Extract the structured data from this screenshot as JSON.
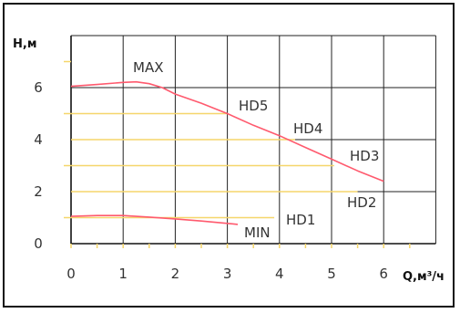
{
  "chart_data": {
    "type": "line",
    "title": "",
    "xlabel": "Q,м³/ч",
    "ylabel": "H,м",
    "xlim": [
      0,
      7
    ],
    "ylim": [
      0,
      8
    ],
    "grid": true,
    "x_ticks": [
      0,
      1,
      2,
      3,
      4,
      5,
      6
    ],
    "y_ticks": [
      0,
      2,
      4,
      6
    ],
    "colors": {
      "curve": "#ff5a6e",
      "speed_line": "#f5d66b",
      "grid": "#222222",
      "axis": "#111111"
    },
    "series": [
      {
        "name": "MAX",
        "x": [
          0,
          0.5,
          1.0,
          1.25,
          1.5,
          1.75,
          2.0,
          2.5,
          3.0,
          3.5,
          4.0,
          4.5,
          5.0,
          5.5,
          6.0
        ],
        "y": [
          6.05,
          6.12,
          6.2,
          6.22,
          6.15,
          6.0,
          5.75,
          5.4,
          5.0,
          4.55,
          4.15,
          3.7,
          3.25,
          2.8,
          2.4
        ]
      },
      {
        "name": "MIN",
        "x": [
          0,
          0.5,
          1.0,
          1.5,
          2.0,
          2.5,
          3.0,
          3.2
        ],
        "y": [
          1.05,
          1.08,
          1.08,
          1.02,
          0.95,
          0.87,
          0.78,
          0.74
        ]
      }
    ],
    "speed_lines": [
      {
        "name": "HD5",
        "y": 5.0,
        "x_end": 3.0
      },
      {
        "name": "HD4",
        "y": 4.0,
        "x_end": 4.3
      },
      {
        "name": "HD3",
        "y": 3.0,
        "x_end": 5.05
      },
      {
        "name": "HD2",
        "y": 2.0,
        "x_end": 5.5
      },
      {
        "name": "HD1",
        "y": 1.0,
        "x_end": 3.9
      }
    ],
    "labels": {
      "max": "MAX",
      "min": "MIN",
      "hd1": "HD1",
      "hd2": "HD2",
      "hd3": "HD3",
      "hd4": "HD4",
      "hd5": "HD5"
    }
  }
}
